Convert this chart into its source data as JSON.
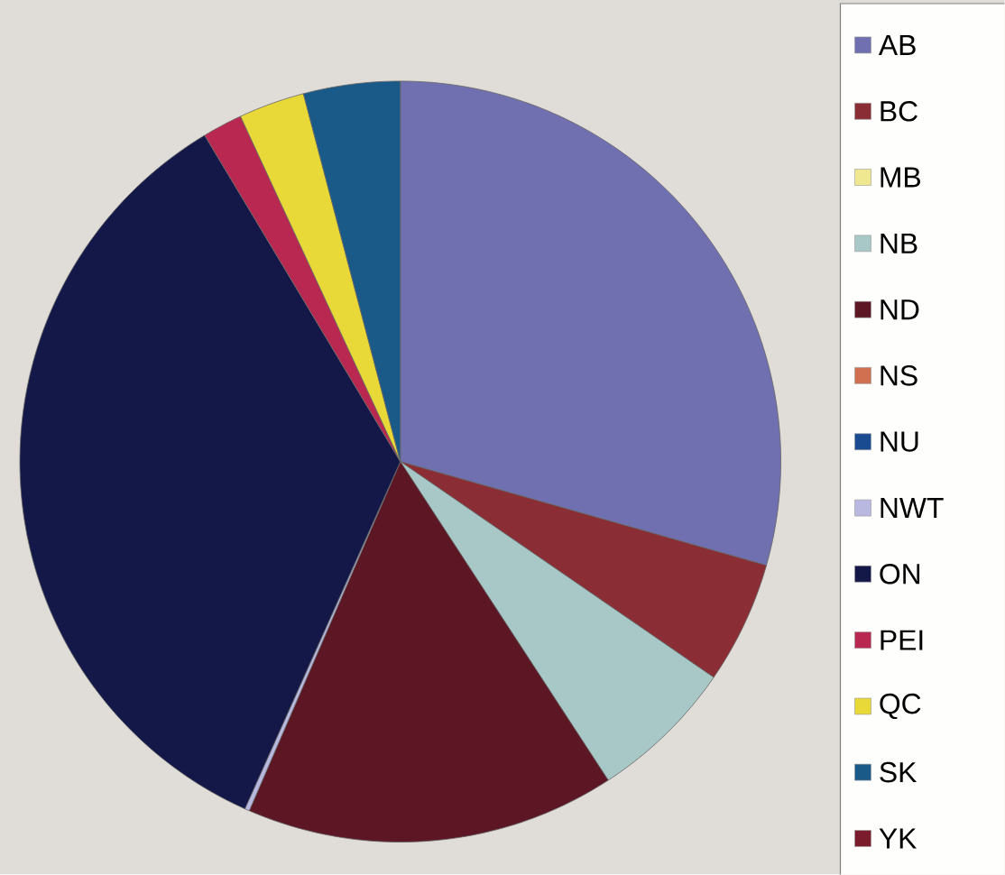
{
  "chart_data": {
    "type": "pie",
    "categories": [
      "AB",
      "BC",
      "MB",
      "NB",
      "ND",
      "NS",
      "NU",
      "NWT",
      "ON",
      "PEI",
      "QC",
      "SK",
      "YK"
    ],
    "values": [
      29.4,
      5.2,
      0,
      6.2,
      15.7,
      0,
      0,
      0.2,
      34.7,
      1.7,
      2.8,
      4.1,
      0
    ],
    "colors": [
      "#7070b0",
      "#8a2d35",
      "#f0e890",
      "#a8c8c8",
      "#5c1624",
      "#d07050",
      "#1a4a90",
      "#b8b8e0",
      "#141848",
      "#b82850",
      "#e8d838",
      "#1a5a88",
      "#7a1c2c"
    ],
    "legend": "right"
  }
}
